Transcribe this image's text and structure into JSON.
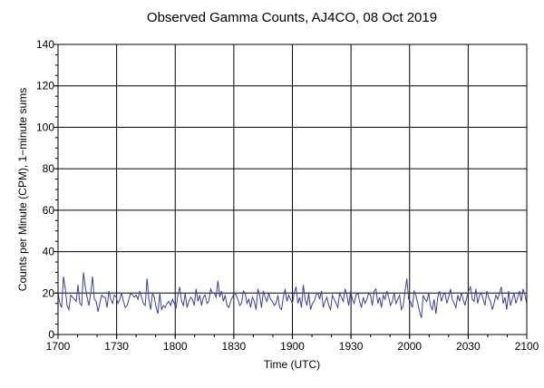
{
  "chart_data": {
    "type": "line",
    "title": "Observed Gamma Counts, AJ4CO, 08 Oct 2019",
    "xlabel": "Time (UTC)",
    "ylabel": "Counts per Minute (CPM), 1−minute sums",
    "xlim": [
      1700,
      2100
    ],
    "ylim": [
      0,
      140
    ],
    "x_ticks": [
      {
        "value": 1700,
        "label": "1700"
      },
      {
        "value": 1730,
        "label": "1730"
      },
      {
        "value": 1800,
        "label": "1800"
      },
      {
        "value": 1830,
        "label": "1830"
      },
      {
        "value": 1900,
        "label": "1900"
      },
      {
        "value": 1930,
        "label": "1930"
      },
      {
        "value": 2000,
        "label": "2000"
      },
      {
        "value": 2030,
        "label": "2030"
      },
      {
        "value": 2100,
        "label": "2100"
      }
    ],
    "y_ticks": [
      0,
      20,
      40,
      60,
      80,
      100,
      120,
      140
    ],
    "grid": true,
    "legend": "none",
    "line_color": "#3b3f9e",
    "series": [
      {
        "x_start": 1700,
        "x_end": 2100,
        "values": [
          20,
          15,
          13,
          28,
          22,
          14,
          12,
          19,
          18,
          17,
          16,
          24,
          15,
          14,
          30,
          23,
          18,
          14,
          20,
          28,
          17,
          16,
          11,
          15,
          19,
          18,
          18,
          13,
          21,
          17,
          15,
          19,
          18,
          15,
          17,
          20,
          16,
          13,
          14,
          17,
          20,
          19,
          18,
          19,
          17,
          21,
          18,
          15,
          14,
          27,
          17,
          12,
          20,
          18,
          13,
          10,
          20,
          12,
          14,
          13,
          15,
          16,
          14,
          17,
          15,
          13,
          19,
          23,
          16,
          14,
          20,
          13,
          16,
          18,
          17,
          14,
          22,
          16,
          19,
          14,
          18,
          19,
          15,
          16,
          22,
          20,
          20,
          18,
          26,
          18,
          21,
          16,
          19,
          14,
          13,
          16,
          18,
          20,
          19,
          17,
          14,
          15,
          21,
          20,
          15,
          17,
          13,
          18,
          16,
          12,
          22,
          19,
          13,
          21,
          18,
          16,
          20,
          17,
          16,
          14,
          15,
          19,
          13,
          12,
          18,
          22,
          16,
          19,
          17,
          15,
          20,
          23,
          15,
          18,
          13,
          24,
          17,
          14,
          20,
          12,
          15,
          16,
          19,
          20,
          17,
          21,
          13,
          16,
          18,
          14,
          12,
          19,
          17,
          15,
          13,
          20,
          18,
          16,
          22,
          19,
          14,
          21,
          17,
          15,
          19,
          20,
          16,
          13,
          18,
          15,
          17,
          20,
          19,
          14,
          21,
          22,
          15,
          18,
          13,
          19,
          17,
          21,
          18,
          14,
          16,
          20,
          15,
          17,
          19,
          12,
          14,
          21,
          27,
          17,
          16,
          13,
          21,
          19,
          15,
          11,
          8,
          19,
          17,
          16,
          20,
          14,
          12,
          17,
          10,
          18,
          21,
          16,
          19,
          20,
          15,
          18,
          22,
          17,
          15,
          13,
          19,
          16,
          20,
          17,
          14,
          18,
          21,
          23,
          17,
          16,
          22,
          15,
          19,
          20,
          17,
          14,
          21,
          18,
          16,
          12,
          15,
          19,
          17,
          20,
          23,
          15,
          18,
          12,
          21,
          14,
          17,
          20,
          15,
          18,
          21,
          16,
          22,
          19,
          15
        ]
      }
    ]
  }
}
